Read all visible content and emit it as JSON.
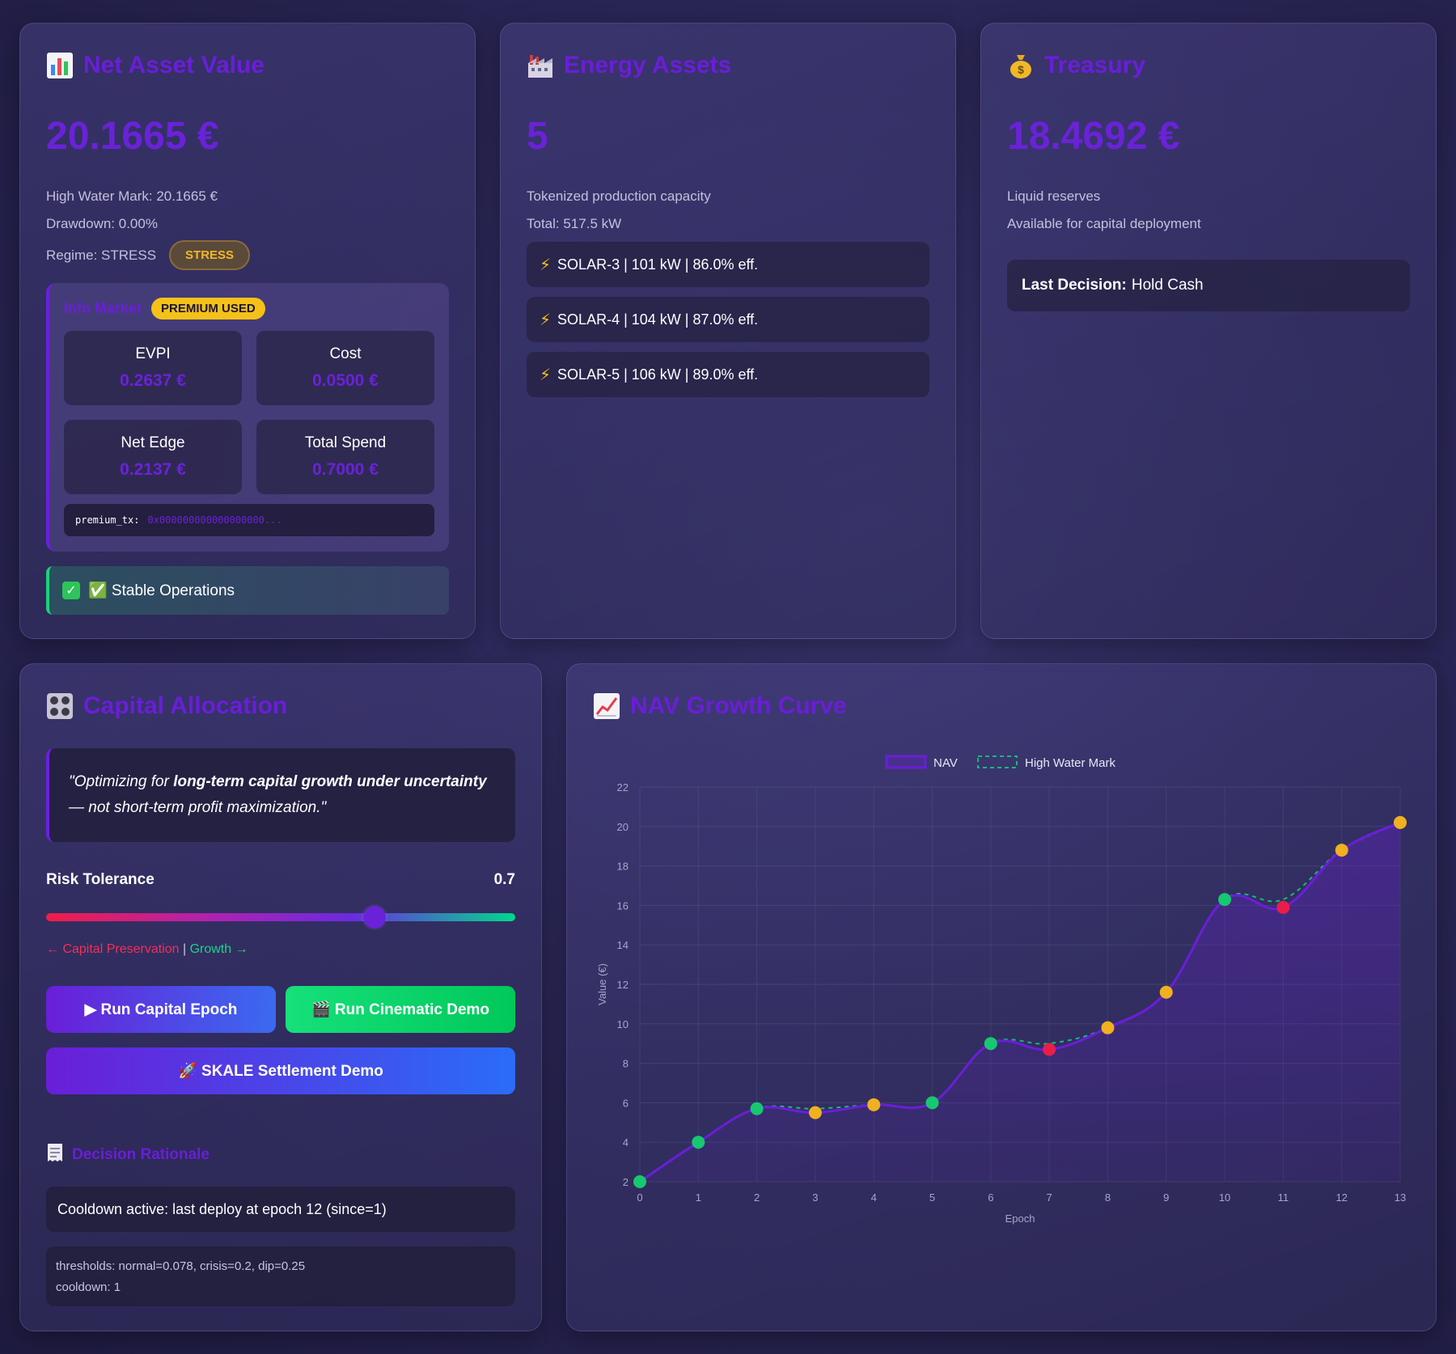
{
  "nav_card": {
    "icon": "bar-chart-icon",
    "title": "Net Asset Value",
    "value": "20.1665 €",
    "high_water_mark": "High Water Mark: 20.1665 €",
    "drawdown": "Drawdown: 0.00%",
    "regime": "Regime: STRESS",
    "regime_badge": "STRESS",
    "info_market": {
      "title": "Info Market",
      "badge": "PREMIUM USED",
      "cells": [
        {
          "label": "EVPI",
          "value": "0.2637 €"
        },
        {
          "label": "Cost",
          "value": "0.0500 €"
        },
        {
          "label": "Net Edge",
          "value": "0.2137 €"
        },
        {
          "label": "Total Spend",
          "value": "0.7000 €"
        }
      ],
      "tx_label": "premium_tx:",
      "tx_value": "0x000000000000000000..."
    },
    "status": "✅ Stable Operations"
  },
  "energy_card": {
    "icon": "factory-icon",
    "title": "Energy Assets",
    "value": "5",
    "subtitle": "Tokenized production capacity",
    "total": "Total: 517.5 kW",
    "assets": [
      "SOLAR-3 | 101 kW | 86.0% eff.",
      "SOLAR-4 | 104 kW | 87.0% eff.",
      "SOLAR-5 | 106 kW | 89.0% eff."
    ]
  },
  "treasury_card": {
    "icon": "money-bag-icon",
    "title": "Treasury",
    "value": "18.4692 €",
    "line1": "Liquid reserves",
    "line2": "Available for capital deployment",
    "decision_label": "Last Decision:",
    "decision_value": "Hold Cash"
  },
  "capital_card": {
    "icon": "control-knobs-icon",
    "title": "Capital Allocation",
    "quote_pre": "\"Optimizing for ",
    "quote_bold": "long-term capital growth under uncertainty",
    "quote_post": " — not short-term profit maximization.\"",
    "risk_label": "Risk Tolerance",
    "risk_value": "0.7",
    "risk_fraction": 0.7,
    "scale_left": "← Capital Preservation",
    "scale_sep": "|",
    "scale_right": "Growth →",
    "btn_run": "▶ Run Capital Epoch",
    "btn_cine": "🎬 Run Cinematic Demo",
    "btn_skale": "🚀 SKALE Settlement Demo",
    "rationale_title": "Decision Rationale",
    "cooldown": "Cooldown active: last deploy at epoch 12 (since=1)",
    "thresholds": "thresholds: normal=0.078, crisis=0.2, dip=0.25",
    "cooldown_line": "cooldown: 1"
  },
  "chart_card": {
    "icon": "chart-up-icon",
    "title": "NAV Growth Curve"
  },
  "chart_data": {
    "type": "line",
    "title": "NAV Growth Curve",
    "xlabel": "Epoch",
    "ylabel": "Value (€)",
    "x": [
      0,
      1,
      2,
      3,
      4,
      5,
      6,
      7,
      8,
      9,
      10,
      11,
      12,
      13
    ],
    "ylim": [
      2,
      22
    ],
    "yticks": [
      2,
      4,
      6,
      8,
      10,
      12,
      14,
      16,
      18,
      20,
      22
    ],
    "legend_placement": "top-center",
    "grid": true,
    "series": [
      {
        "name": "NAV",
        "values": [
          2.0,
          4.0,
          5.7,
          5.5,
          5.9,
          6.0,
          9.0,
          8.7,
          9.8,
          11.6,
          16.3,
          15.9,
          18.8,
          20.2
        ],
        "color": "#6a1ed8"
      },
      {
        "name": "High Water Mark",
        "values": [
          2.0,
          4.0,
          5.7,
          5.7,
          5.9,
          6.0,
          9.0,
          9.0,
          9.8,
          11.6,
          16.3,
          16.3,
          18.8,
          20.2
        ],
        "color": "#18b87a",
        "dashed": true
      }
    ],
    "point_colors": [
      "#16c870",
      "#16c870",
      "#16c870",
      "#f0b020",
      "#f0b020",
      "#16c870",
      "#16c870",
      "#e81e4a",
      "#f0b020",
      "#f0b020",
      "#16c870",
      "#e81e4a",
      "#f0b020",
      "#f0b020"
    ]
  }
}
